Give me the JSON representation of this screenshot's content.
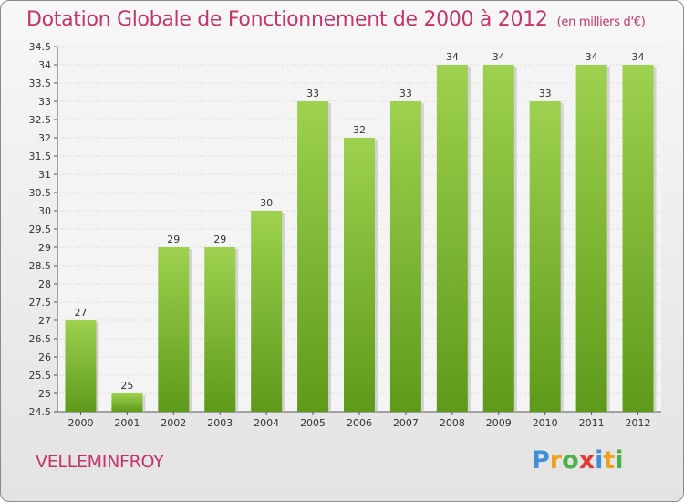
{
  "title": "Dotation Globale de Fonctionnement de 2000 à 2012",
  "subtitle": "(en milliers d'€)",
  "commune": "VELLEMINFROY",
  "logo": {
    "letters": [
      "P",
      "r",
      "o",
      "x",
      "i",
      "t",
      "i"
    ],
    "colors": [
      "#3f8fd8",
      "#f0a020",
      "#4ab04a",
      "#e03a3a",
      "#3f8fd8",
      "#f0a020",
      "#4ab04a"
    ]
  },
  "colors": {
    "bar_top": "#9ed14f",
    "bar_bottom": "#5e9a1a",
    "text_accent": "#c4346c"
  },
  "chart_data": {
    "type": "bar",
    "categories": [
      "2000",
      "2001",
      "2002",
      "2003",
      "2004",
      "2005",
      "2006",
      "2007",
      "2008",
      "2009",
      "2010",
      "2011",
      "2012"
    ],
    "values": [
      27,
      25,
      29,
      29,
      30,
      33,
      32,
      33,
      34,
      34,
      33,
      34,
      34
    ],
    "title": "Dotation Globale de Fonctionnement de 2000 à 2012",
    "subtitle": "(en milliers d'€)",
    "xlabel": "",
    "ylabel": "",
    "ylim": [
      24.5,
      34.5
    ],
    "yticks": [
      "24.5",
      "25",
      "25.5",
      "26",
      "26.5",
      "27",
      "27.5",
      "28",
      "28.5",
      "29",
      "29.5",
      "30",
      "30.5",
      "31",
      "31.5",
      "32",
      "32.5",
      "33",
      "33.5",
      "34",
      "34.5"
    ],
    "grid": true,
    "legend": "none"
  }
}
